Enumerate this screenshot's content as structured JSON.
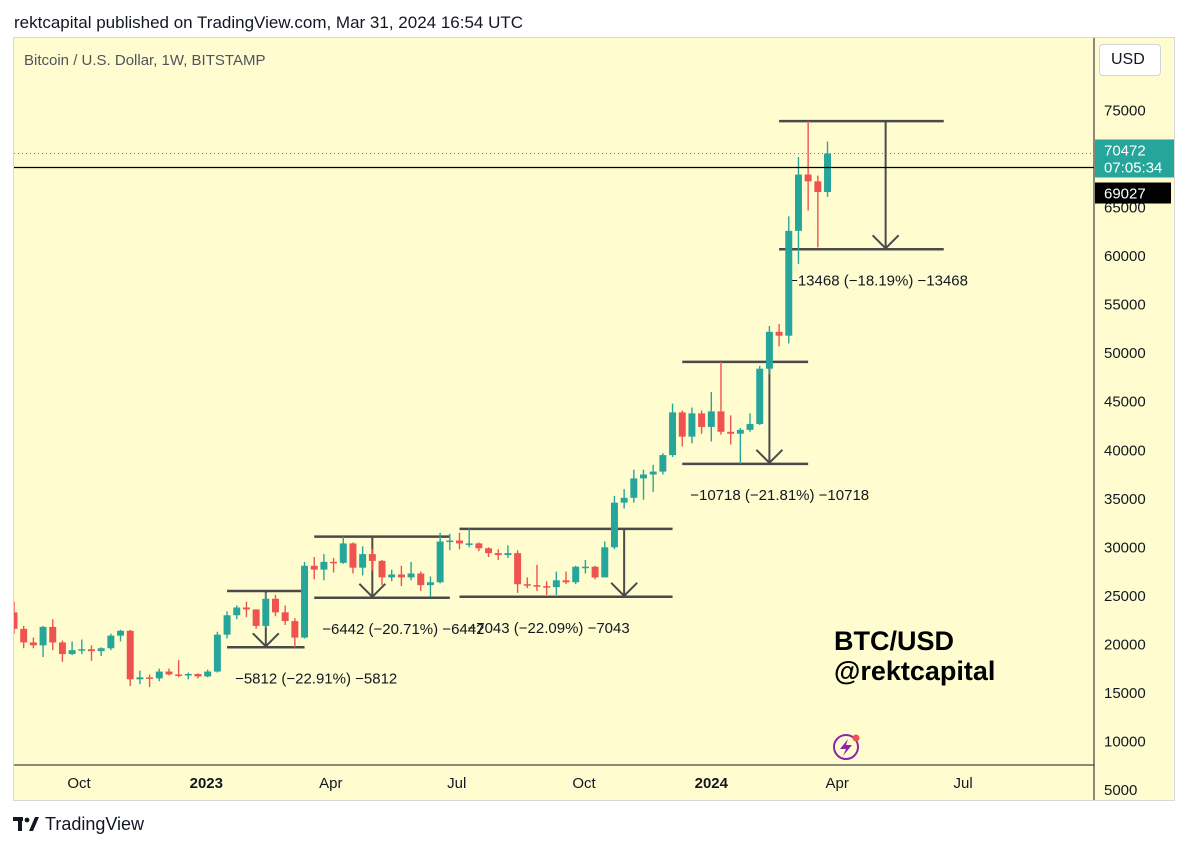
{
  "header": {
    "published": "rektcapital published on TradingView.com, Mar 31, 2024 16:54 UTC"
  },
  "toolbar": {
    "currency": "USD"
  },
  "watermark": {
    "line1": "BTC/USD",
    "line2": "@rektcapital"
  },
  "footer": {
    "brand": "TradingView",
    "logo_icon": "tradingview-logo-icon"
  },
  "icons": {
    "alert": "lightning-alert-icon"
  },
  "colors": {
    "up": "#26a69a",
    "down": "#ef5350",
    "background": "#fffdd0",
    "annotation": "#4a4a4a"
  },
  "chart_data": {
    "type": "candlestick",
    "title": "Bitcoin / U.S. Dollar, 1W, BITSTAMP",
    "ylim": [
      5000,
      80000
    ],
    "y_ticks": [
      5000,
      10000,
      15000,
      20000,
      25000,
      30000,
      35000,
      40000,
      45000,
      50000,
      55000,
      60000,
      65000,
      70000,
      75000
    ],
    "x_ticks": [
      {
        "label": "Oct",
        "date": "2022-10-01",
        "bold": false
      },
      {
        "label": "2023",
        "date": "2023-01-01",
        "bold": true
      },
      {
        "label": "Apr",
        "date": "2023-04-01",
        "bold": false
      },
      {
        "label": "Jul",
        "date": "2023-07-01",
        "bold": false
      },
      {
        "label": "Oct",
        "date": "2023-10-01",
        "bold": false
      },
      {
        "label": "2024",
        "date": "2024-01-01",
        "bold": true
      },
      {
        "label": "Apr",
        "date": "2024-04-01",
        "bold": false
      },
      {
        "label": "Jul",
        "date": "2024-07-01",
        "bold": false
      }
    ],
    "xlim": [
      "2022-08-15",
      "2024-09-30"
    ],
    "candles": [
      {
        "d": "2022-08-15",
        "o": 23200,
        "h": 24300,
        "l": 21000,
        "c": 21500
      },
      {
        "d": "2022-08-22",
        "o": 21500,
        "h": 21800,
        "l": 19500,
        "c": 20100
      },
      {
        "d": "2022-08-29",
        "o": 20100,
        "h": 20600,
        "l": 19500,
        "c": 19800
      },
      {
        "d": "2022-09-05",
        "o": 19800,
        "h": 21800,
        "l": 18600,
        "c": 21700
      },
      {
        "d": "2022-09-12",
        "o": 21700,
        "h": 22500,
        "l": 19300,
        "c": 20100
      },
      {
        "d": "2022-09-19",
        "o": 20100,
        "h": 20300,
        "l": 18100,
        "c": 18900
      },
      {
        "d": "2022-09-26",
        "o": 18900,
        "h": 20200,
        "l": 18800,
        "c": 19300
      },
      {
        "d": "2022-10-03",
        "o": 19300,
        "h": 20400,
        "l": 18900,
        "c": 19400
      },
      {
        "d": "2022-10-10",
        "o": 19400,
        "h": 19800,
        "l": 18200,
        "c": 19200
      },
      {
        "d": "2022-10-17",
        "o": 19200,
        "h": 19600,
        "l": 18700,
        "c": 19500
      },
      {
        "d": "2022-10-24",
        "o": 19500,
        "h": 21000,
        "l": 19300,
        "c": 20800
      },
      {
        "d": "2022-10-31",
        "o": 20800,
        "h": 21400,
        "l": 20200,
        "c": 21300
      },
      {
        "d": "2022-11-07",
        "o": 21300,
        "h": 21400,
        "l": 15600,
        "c": 16300
      },
      {
        "d": "2022-11-14",
        "o": 16300,
        "h": 17200,
        "l": 15800,
        "c": 16500
      },
      {
        "d": "2022-11-21",
        "o": 16500,
        "h": 16800,
        "l": 15500,
        "c": 16400
      },
      {
        "d": "2022-11-28",
        "o": 16400,
        "h": 17400,
        "l": 16100,
        "c": 17100
      },
      {
        "d": "2022-12-05",
        "o": 17100,
        "h": 17400,
        "l": 16700,
        "c": 16800
      },
      {
        "d": "2022-12-12",
        "o": 16800,
        "h": 18300,
        "l": 16500,
        "c": 16700
      },
      {
        "d": "2022-12-19",
        "o": 16700,
        "h": 17000,
        "l": 16300,
        "c": 16850
      },
      {
        "d": "2022-12-26",
        "o": 16850,
        "h": 16900,
        "l": 16400,
        "c": 16600
      },
      {
        "d": "2023-01-02",
        "o": 16600,
        "h": 17300,
        "l": 16500,
        "c": 17100
      },
      {
        "d": "2023-01-09",
        "o": 17100,
        "h": 21200,
        "l": 17000,
        "c": 20900
      },
      {
        "d": "2023-01-16",
        "o": 20900,
        "h": 23300,
        "l": 20500,
        "c": 22900
      },
      {
        "d": "2023-01-23",
        "o": 22900,
        "h": 23900,
        "l": 22500,
        "c": 23700
      },
      {
        "d": "2023-01-30",
        "o": 23700,
        "h": 24300,
        "l": 22700,
        "c": 23500
      },
      {
        "d": "2023-02-06",
        "o": 23500,
        "h": 23500,
        "l": 21500,
        "c": 21800
      },
      {
        "d": "2023-02-13",
        "o": 21800,
        "h": 25200,
        "l": 21600,
        "c": 24600
      },
      {
        "d": "2023-02-20",
        "o": 24600,
        "h": 25000,
        "l": 22800,
        "c": 23200
      },
      {
        "d": "2023-02-27",
        "o": 23200,
        "h": 23900,
        "l": 21900,
        "c": 22300
      },
      {
        "d": "2023-03-06",
        "o": 22300,
        "h": 22600,
        "l": 19600,
        "c": 20600
      },
      {
        "d": "2023-03-13",
        "o": 20600,
        "h": 28400,
        "l": 20500,
        "c": 28000
      },
      {
        "d": "2023-03-20",
        "o": 28000,
        "h": 28900,
        "l": 26600,
        "c": 27600
      },
      {
        "d": "2023-03-27",
        "o": 27600,
        "h": 29200,
        "l": 26500,
        "c": 28400
      },
      {
        "d": "2023-04-03",
        "o": 28400,
        "h": 28800,
        "l": 27300,
        "c": 28300
      },
      {
        "d": "2023-04-10",
        "o": 28300,
        "h": 31000,
        "l": 28200,
        "c": 30300
      },
      {
        "d": "2023-04-17",
        "o": 30300,
        "h": 30400,
        "l": 27200,
        "c": 27800
      },
      {
        "d": "2023-04-24",
        "o": 27800,
        "h": 30000,
        "l": 27000,
        "c": 29200
      },
      {
        "d": "2023-05-01",
        "o": 29200,
        "h": 29700,
        "l": 27500,
        "c": 28500
      },
      {
        "d": "2023-05-08",
        "o": 28500,
        "h": 28600,
        "l": 26000,
        "c": 26800
      },
      {
        "d": "2023-05-15",
        "o": 26800,
        "h": 27600,
        "l": 26400,
        "c": 27100
      },
      {
        "d": "2023-05-22",
        "o": 27100,
        "h": 28000,
        "l": 25900,
        "c": 26800
      },
      {
        "d": "2023-05-29",
        "o": 26800,
        "h": 28400,
        "l": 26500,
        "c": 27200
      },
      {
        "d": "2023-06-05",
        "o": 27200,
        "h": 27400,
        "l": 25400,
        "c": 26000
      },
      {
        "d": "2023-06-12",
        "o": 26000,
        "h": 26900,
        "l": 24800,
        "c": 26300
      },
      {
        "d": "2023-06-19",
        "o": 26300,
        "h": 31400,
        "l": 26200,
        "c": 30500
      },
      {
        "d": "2023-06-26",
        "o": 30500,
        "h": 31300,
        "l": 29600,
        "c": 30600
      },
      {
        "d": "2023-07-03",
        "o": 30600,
        "h": 31400,
        "l": 29700,
        "c": 30300
      },
      {
        "d": "2023-07-10",
        "o": 30300,
        "h": 31800,
        "l": 29900,
        "c": 30300
      },
      {
        "d": "2023-07-17",
        "o": 30300,
        "h": 30400,
        "l": 29500,
        "c": 29800
      },
      {
        "d": "2023-07-24",
        "o": 29800,
        "h": 29900,
        "l": 28900,
        "c": 29300
      },
      {
        "d": "2023-07-31",
        "o": 29300,
        "h": 29700,
        "l": 28600,
        "c": 29100
      },
      {
        "d": "2023-08-07",
        "o": 29100,
        "h": 30100,
        "l": 28800,
        "c": 29300
      },
      {
        "d": "2023-08-14",
        "o": 29300,
        "h": 29600,
        "l": 25200,
        "c": 26100
      },
      {
        "d": "2023-08-21",
        "o": 26100,
        "h": 26800,
        "l": 25700,
        "c": 26000
      },
      {
        "d": "2023-08-28",
        "o": 26000,
        "h": 28100,
        "l": 25400,
        "c": 25900
      },
      {
        "d": "2023-09-04",
        "o": 25900,
        "h": 26400,
        "l": 25000,
        "c": 25800
      },
      {
        "d": "2023-09-11",
        "o": 25800,
        "h": 27400,
        "l": 25000,
        "c": 26500
      },
      {
        "d": "2023-09-18",
        "o": 26500,
        "h": 27400,
        "l": 26100,
        "c": 26300
      },
      {
        "d": "2023-09-25",
        "o": 26300,
        "h": 28000,
        "l": 26100,
        "c": 27900
      },
      {
        "d": "2023-10-02",
        "o": 27900,
        "h": 28600,
        "l": 27200,
        "c": 27900
      },
      {
        "d": "2023-10-09",
        "o": 27900,
        "h": 28000,
        "l": 26600,
        "c": 26800
      },
      {
        "d": "2023-10-16",
        "o": 26800,
        "h": 30500,
        "l": 26800,
        "c": 29900
      },
      {
        "d": "2023-10-23",
        "o": 29900,
        "h": 35200,
        "l": 29700,
        "c": 34500
      },
      {
        "d": "2023-10-30",
        "o": 34500,
        "h": 35900,
        "l": 33900,
        "c": 35000
      },
      {
        "d": "2023-11-06",
        "o": 35000,
        "h": 37900,
        "l": 34500,
        "c": 37000
      },
      {
        "d": "2023-11-13",
        "o": 37000,
        "h": 37900,
        "l": 34800,
        "c": 37400
      },
      {
        "d": "2023-11-20",
        "o": 37400,
        "h": 38400,
        "l": 35600,
        "c": 37700
      },
      {
        "d": "2023-11-27",
        "o": 37700,
        "h": 39600,
        "l": 37400,
        "c": 39400
      },
      {
        "d": "2023-12-04",
        "o": 39400,
        "h": 44700,
        "l": 39200,
        "c": 43800
      },
      {
        "d": "2023-12-11",
        "o": 43800,
        "h": 44000,
        "l": 40300,
        "c": 41300
      },
      {
        "d": "2023-12-18",
        "o": 41300,
        "h": 44300,
        "l": 40600,
        "c": 43700
      },
      {
        "d": "2023-12-25",
        "o": 43700,
        "h": 44000,
        "l": 41600,
        "c": 42300
      },
      {
        "d": "2024-01-01",
        "o": 42300,
        "h": 45900,
        "l": 40800,
        "c": 43900
      },
      {
        "d": "2024-01-08",
        "o": 43900,
        "h": 49000,
        "l": 41500,
        "c": 41800
      },
      {
        "d": "2024-01-15",
        "o": 41800,
        "h": 43500,
        "l": 40500,
        "c": 41600
      },
      {
        "d": "2024-01-22",
        "o": 41600,
        "h": 42200,
        "l": 38500,
        "c": 42000
      },
      {
        "d": "2024-01-29",
        "o": 42000,
        "h": 43700,
        "l": 41800,
        "c": 42600
      },
      {
        "d": "2024-02-05",
        "o": 42600,
        "h": 48600,
        "l": 42500,
        "c": 48300
      },
      {
        "d": "2024-02-12",
        "o": 48300,
        "h": 52700,
        "l": 47700,
        "c": 52100
      },
      {
        "d": "2024-02-19",
        "o": 52100,
        "h": 52900,
        "l": 50600,
        "c": 51700
      },
      {
        "d": "2024-02-26",
        "o": 51700,
        "h": 64000,
        "l": 50900,
        "c": 62500
      },
      {
        "d": "2024-03-04",
        "o": 62500,
        "h": 70100,
        "l": 59100,
        "c": 68300
      },
      {
        "d": "2024-03-11",
        "o": 68300,
        "h": 73800,
        "l": 64600,
        "c": 67600
      },
      {
        "d": "2024-03-18",
        "o": 67600,
        "h": 68200,
        "l": 60800,
        "c": 66500
      },
      {
        "d": "2024-03-25",
        "o": 66500,
        "h": 71700,
        "l": 66000,
        "c": 70472
      }
    ],
    "annotations": [
      {
        "label": "−5812 (−22.91%) −5812",
        "x1": "2023-01-16",
        "x2": "2023-03-13",
        "top": 25400,
        "bottom": 19600,
        "arrow_x": "2023-02-13"
      },
      {
        "label": "−6442 (−20.71%) −6442",
        "x1": "2023-03-20",
        "x2": "2023-06-26",
        "top": 31000,
        "bottom": 24700,
        "arrow_x": "2023-05-01"
      },
      {
        "label": "−7043 (−22.09%) −7043",
        "x1": "2023-07-03",
        "x2": "2023-12-04",
        "top": 31800,
        "bottom": 24800,
        "arrow_x": "2023-10-30"
      },
      {
        "label": "−10718 (−21.81%) −10718",
        "x1": "2023-12-11",
        "x2": "2024-03-11",
        "top": 49000,
        "bottom": 38500,
        "arrow_x": "2024-02-12"
      },
      {
        "label": "−13468 (−18.19%) −13468",
        "x1": "2024-02-19",
        "x2": "2024-06-17",
        "top": 73800,
        "bottom": 60600,
        "arrow_x": "2024-05-06"
      }
    ],
    "price_lines": [
      {
        "value": 70472,
        "label": "70472",
        "sublabel": "07:05:34",
        "style": "dotted",
        "color": "#26a69a"
      },
      {
        "value": 69027,
        "label": "69027",
        "style": "solid",
        "color": "#000000"
      }
    ],
    "grid": false,
    "legend": "none"
  }
}
